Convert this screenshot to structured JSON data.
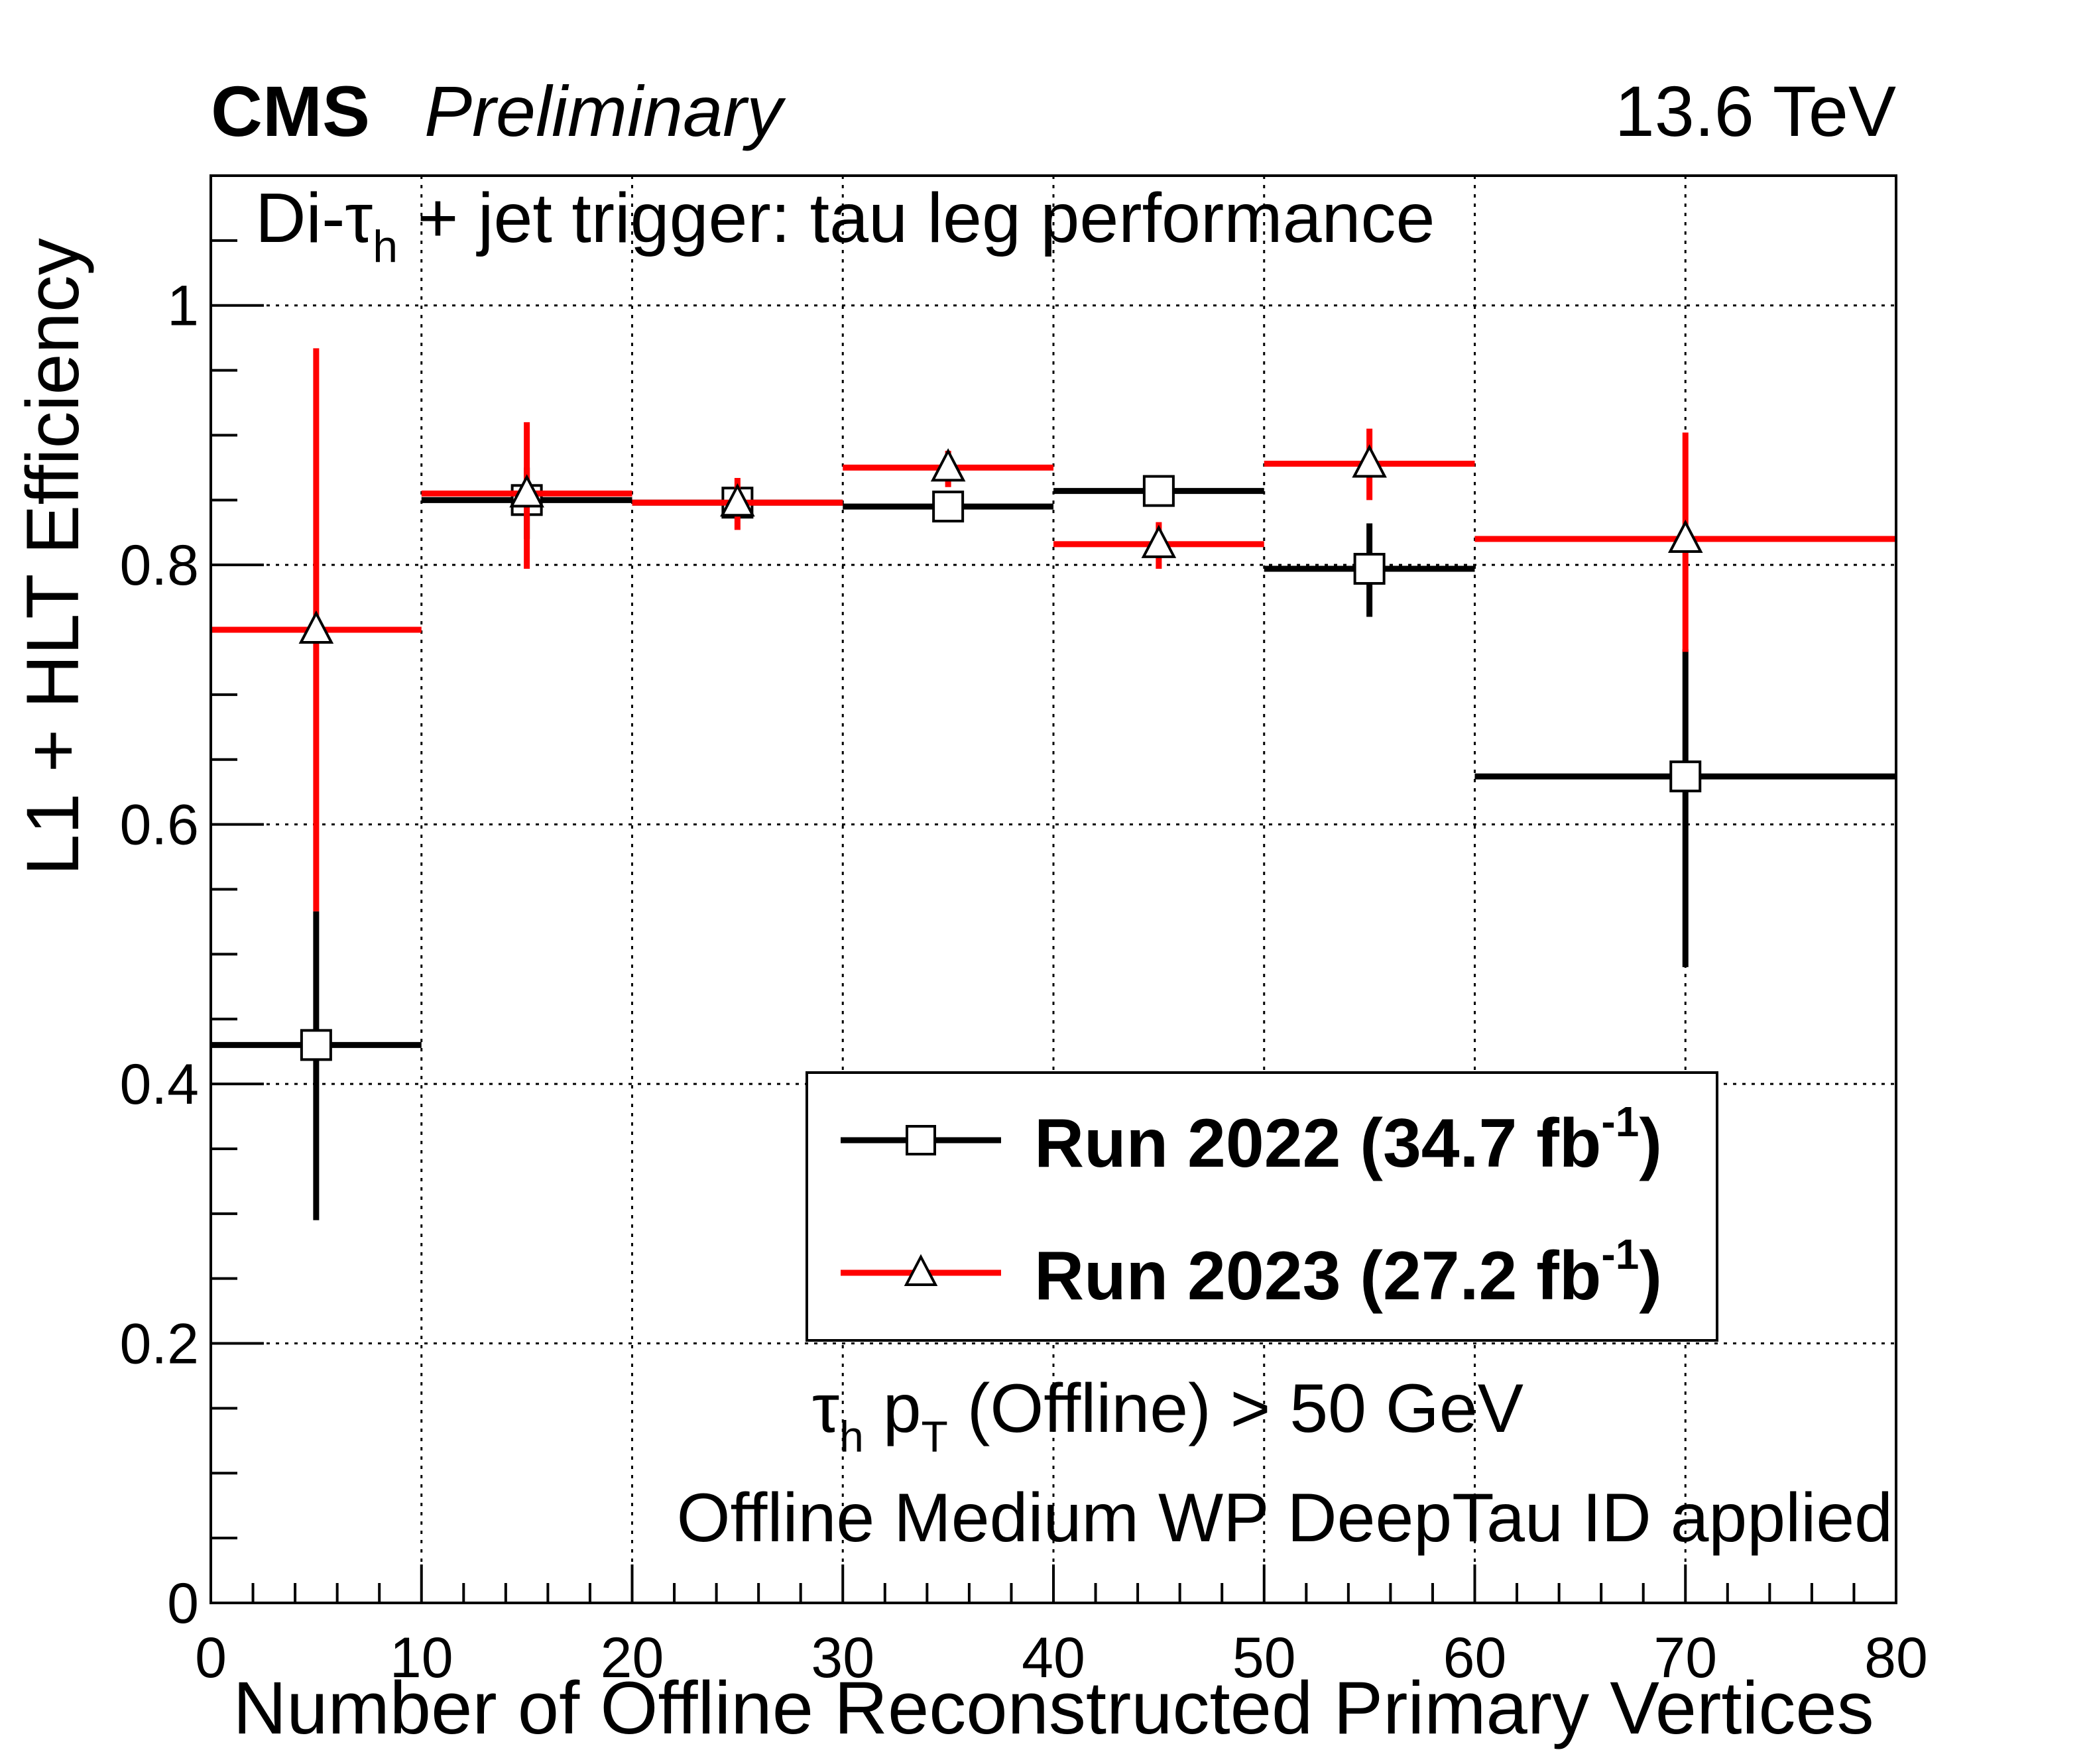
{
  "header": {
    "experiment": "CMS",
    "status": "Preliminary",
    "energy": "13.6 TeV"
  },
  "annotations": {
    "title_prefix": "Di-",
    "title_tau": "τ",
    "title_sub": "h",
    "title_suffix": " + jet trigger: tau leg performance",
    "cut_tau": "τ",
    "cut_tau_sub": "h",
    "cut_p": " p",
    "cut_p_sub": "T",
    "cut_rest": " (Offline) > 50 GeV",
    "id_line": "Offline Medium WP DeepTau ID applied"
  },
  "legend": {
    "entries": [
      {
        "name": "Run 2022 (34.7 fb",
        "sup": "-1",
        "close": ")",
        "color": "#000000",
        "marker": "square"
      },
      {
        "name": "Run 2023 (27.2 fb",
        "sup": "-1",
        "close": ")",
        "color": "#ff0000",
        "marker": "triangle"
      }
    ]
  },
  "chart_data": {
    "type": "scatter",
    "title": "Di-τh + jet trigger: tau leg performance",
    "xlabel": "Number of Offline Reconstructed Primary Vertices",
    "ylabel": "L1 + HLT Efficiency",
    "xlim": [
      0,
      80
    ],
    "ylim": [
      0,
      1.1
    ],
    "grid": true,
    "legend_position": "middle-right",
    "x_ticks": [
      0,
      10,
      20,
      30,
      40,
      50,
      60,
      70,
      80
    ],
    "x_tick_labels": [
      "0",
      "10",
      "20",
      "30",
      "40",
      "50",
      "60",
      "70",
      "80"
    ],
    "y_ticks": [
      0,
      0.2,
      0.4,
      0.6,
      0.8,
      1.0
    ],
    "y_tick_labels": [
      "0",
      "0.2",
      "0.4",
      "0.6",
      "0.8",
      "1"
    ],
    "series": [
      {
        "name": "Run 2022 (34.7 fb-1)",
        "color": "#000000",
        "marker": "square",
        "points": [
          {
            "x": 5,
            "xlo": 0,
            "xhi": 10,
            "y": 0.43,
            "ylo": 0.295,
            "yhi": 0.533
          },
          {
            "x": 15,
            "xlo": 10,
            "xhi": 20,
            "y": 0.85,
            "ylo": 0.82,
            "yhi": 0.875
          },
          {
            "x": 25,
            "xlo": 20,
            "xhi": 30,
            "y": 0.848,
            "ylo": 0.836,
            "yhi": 0.859
          },
          {
            "x": 35,
            "xlo": 30,
            "xhi": 40,
            "y": 0.845,
            "ylo": 0.835,
            "yhi": 0.855
          },
          {
            "x": 45,
            "xlo": 40,
            "xhi": 50,
            "y": 0.857,
            "ylo": 0.847,
            "yhi": 0.867
          },
          {
            "x": 55,
            "xlo": 50,
            "xhi": 60,
            "y": 0.797,
            "ylo": 0.76,
            "yhi": 0.832
          },
          {
            "x": 70,
            "xlo": 60,
            "xhi": 80,
            "y": 0.637,
            "ylo": 0.49,
            "yhi": 0.735
          }
        ]
      },
      {
        "name": "Run 2023 (27.2 fb-1)",
        "color": "#ff0000",
        "marker": "triangle",
        "points": [
          {
            "x": 5,
            "xlo": 0,
            "xhi": 10,
            "y": 0.75,
            "ylo": 0.533,
            "yhi": 0.967
          },
          {
            "x": 15,
            "xlo": 10,
            "xhi": 20,
            "y": 0.855,
            "ylo": 0.797,
            "yhi": 0.91
          },
          {
            "x": 25,
            "xlo": 20,
            "xhi": 30,
            "y": 0.848,
            "ylo": 0.827,
            "yhi": 0.867
          },
          {
            "x": 35,
            "xlo": 30,
            "xhi": 40,
            "y": 0.875,
            "ylo": 0.86,
            "yhi": 0.888
          },
          {
            "x": 45,
            "xlo": 40,
            "xhi": 50,
            "y": 0.816,
            "ylo": 0.797,
            "yhi": 0.833
          },
          {
            "x": 55,
            "xlo": 50,
            "xhi": 60,
            "y": 0.878,
            "ylo": 0.85,
            "yhi": 0.905
          },
          {
            "x": 70,
            "xlo": 60,
            "xhi": 80,
            "y": 0.82,
            "ylo": 0.733,
            "yhi": 0.902
          }
        ]
      }
    ]
  }
}
